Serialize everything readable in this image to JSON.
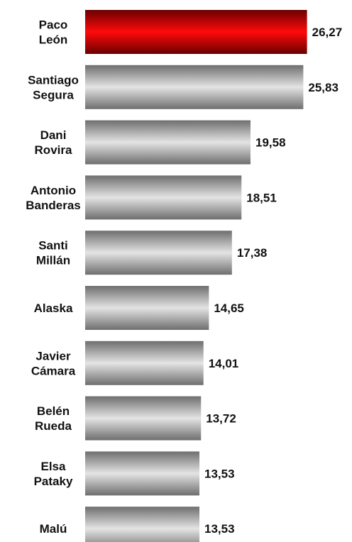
{
  "chart_data": {
    "type": "bar",
    "orientation": "horizontal",
    "categories": [
      [
        "Paco",
        "León"
      ],
      [
        "Santiago",
        "Segura"
      ],
      [
        "Dani",
        "Rovira"
      ],
      [
        "Antonio",
        "Banderas"
      ],
      [
        "Santi",
        "Millán"
      ],
      [
        "Alaska"
      ],
      [
        "Javier",
        "Cámara"
      ],
      [
        "Belén",
        "Rueda"
      ],
      [
        "Elsa",
        "Pataky"
      ],
      [
        "Malú"
      ]
    ],
    "values": [
      26.27,
      25.83,
      19.58,
      18.51,
      17.38,
      14.65,
      14.01,
      13.72,
      13.53,
      13.53
    ],
    "value_labels": [
      "26,27",
      "25,83",
      "19,58",
      "18,51",
      "17,38",
      "14,65",
      "14,01",
      "13,72",
      "13,53",
      "13,53"
    ],
    "highlight_index": 0,
    "colors": {
      "highlight": "#e00000",
      "default": "#a8a8a8"
    },
    "xlim": [
      0,
      30
    ],
    "grid": false,
    "title": "",
    "xlabel": "",
    "ylabel": ""
  }
}
